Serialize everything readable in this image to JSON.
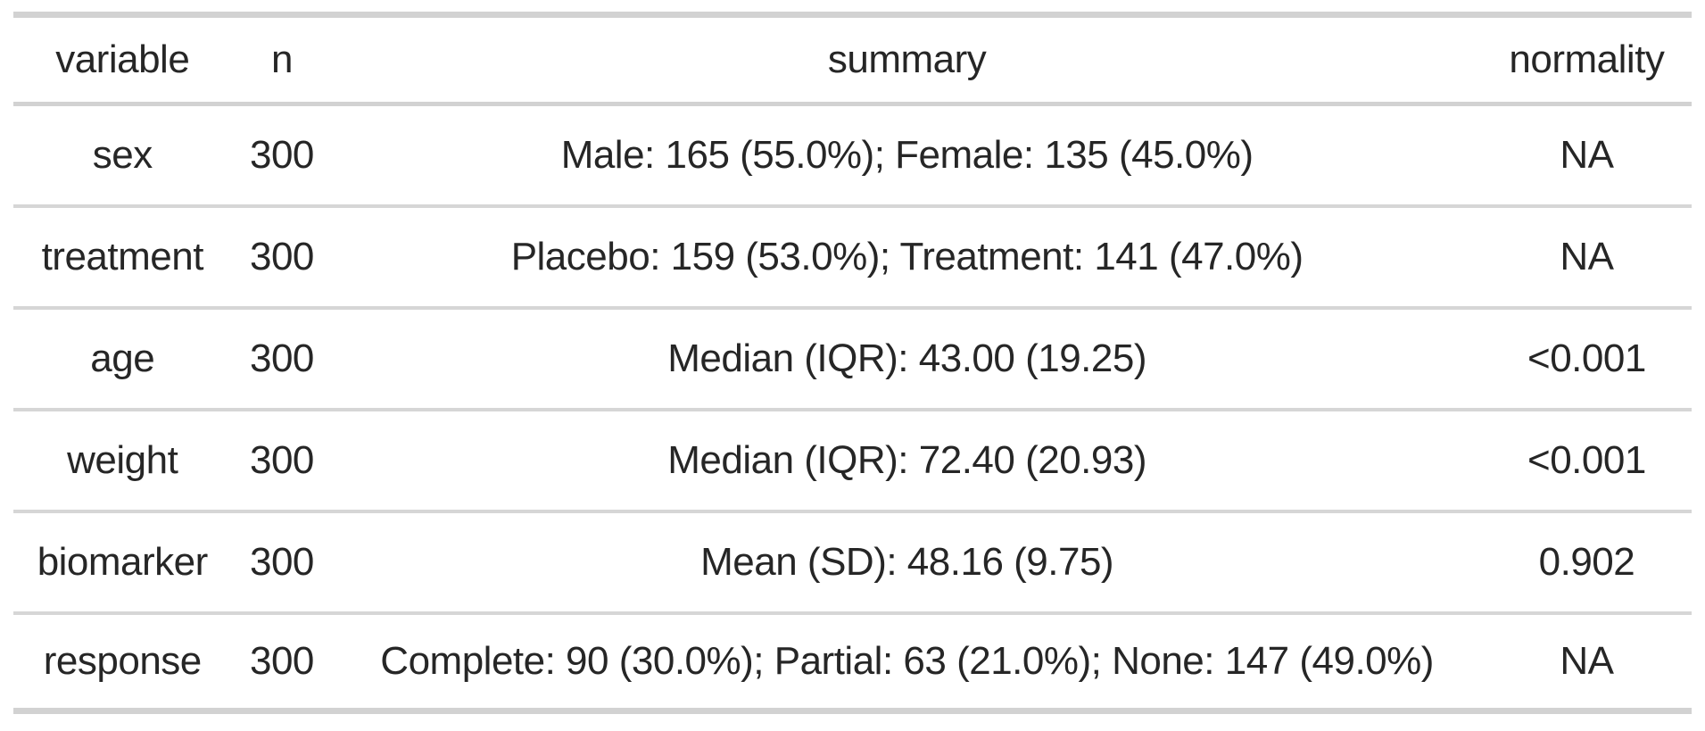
{
  "chart_data": {
    "type": "table",
    "title": "",
    "columns": [
      "variable",
      "n",
      "summary",
      "normality"
    ],
    "rows": [
      [
        "sex",
        "300",
        "Male: 165 (55.0%); Female: 135 (45.0%)",
        "NA"
      ],
      [
        "treatment",
        "300",
        "Placebo: 159 (53.0%); Treatment: 141 (47.0%)",
        "NA"
      ],
      [
        "age",
        "300",
        "Median (IQR): 43.00 (19.25)",
        "<0.001"
      ],
      [
        "weight",
        "300",
        "Median (IQR): 72.40 (20.93)",
        "<0.001"
      ],
      [
        "biomarker",
        "300",
        "Mean (SD): 48.16 (9.75)",
        "0.902"
      ],
      [
        "response",
        "300",
        "Complete: 90 (30.0%); Partial: 63 (21.0%); None: 147 (49.0%)",
        "NA"
      ]
    ],
    "layout": {
      "alignment": "center-all-columns",
      "grid": "horizontal-rules-only",
      "border_color": "#d2d2d2",
      "row_rule_color": "#d6d6d6",
      "text_color": "#262626",
      "background": "#ffffff"
    }
  }
}
